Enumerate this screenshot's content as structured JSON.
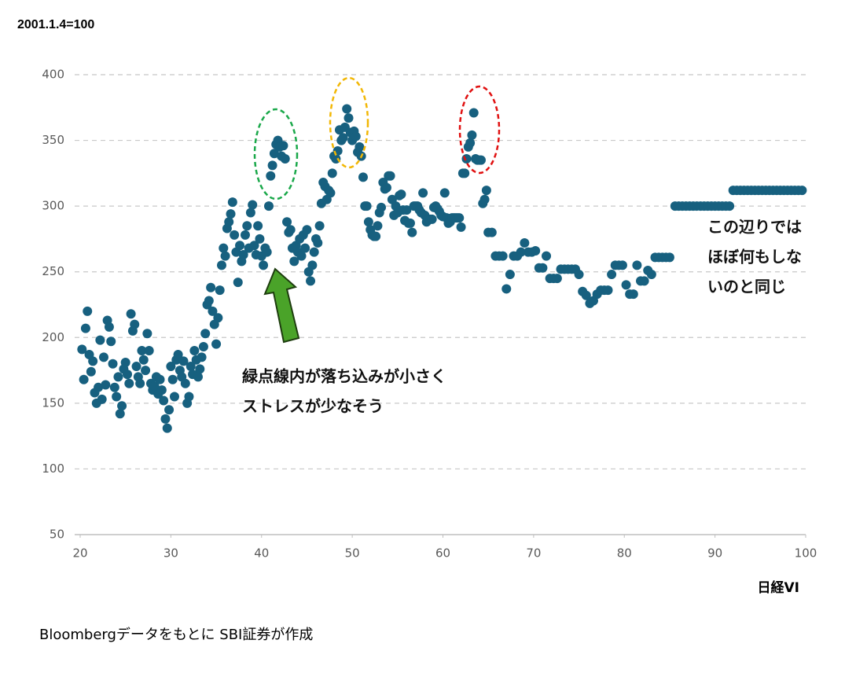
{
  "chart_data": {
    "type": "scatter",
    "ylabel": "2001.1.4=100",
    "xlabel": "日経VI",
    "source": "Bloombergデータをもとに SBI証券が作成",
    "annotations": [
      "緑点線内が落ち込みが小さく",
      "ストレスが少なそう",
      "この辺りでは",
      "ほぼ何もしな",
      "いのと同じ"
    ],
    "color": "#17607f",
    "xlim": [
      20,
      100
    ],
    "xticks": [
      20,
      30,
      40,
      50,
      60,
      70,
      80,
      90,
      100
    ],
    "ylim": [
      50,
      400
    ],
    "yticks": [
      50,
      100,
      150,
      200,
      250,
      300,
      350,
      400
    ],
    "grid": true,
    "x": [
      20.2,
      20.4,
      20.6,
      20.8,
      21.0,
      21.2,
      21.4,
      21.6,
      21.8,
      22.0,
      22.2,
      22.4,
      22.6,
      22.8,
      23.0,
      23.2,
      23.4,
      23.6,
      23.8,
      24.0,
      24.2,
      24.4,
      24.6,
      24.8,
      25.0,
      25.2,
      25.4,
      25.6,
      25.8,
      26.0,
      26.2,
      26.4,
      26.6,
      26.8,
      27.0,
      27.2,
      27.4,
      27.6,
      27.8,
      28.0,
      28.2,
      28.4,
      28.6,
      28.8,
      29.0,
      29.2,
      29.4,
      29.6,
      29.8,
      30.0,
      30.2,
      30.4,
      30.6,
      30.8,
      31.0,
      31.2,
      31.4,
      31.6,
      31.8,
      32.0,
      32.2,
      32.4,
      32.6,
      32.8,
      33.0,
      33.2,
      33.4,
      33.6,
      33.8,
      34.0,
      34.2,
      34.4,
      34.6,
      34.8,
      35.0,
      35.2,
      35.4,
      35.6,
      35.8,
      36.0,
      36.2,
      36.4,
      36.6,
      36.8,
      37.0,
      37.2,
      37.4,
      37.6,
      37.8,
      38.0,
      38.2,
      38.4,
      38.6,
      38.8,
      39.0,
      39.2,
      39.4,
      39.6,
      39.8,
      40.0,
      40.2,
      40.4,
      40.6,
      40.8,
      41.0,
      41.2,
      41.4,
      41.6,
      41.8,
      42.0,
      42.2,
      42.4,
      42.6,
      42.8,
      43.0,
      43.2,
      43.4,
      43.6,
      43.8,
      44.0,
      44.2,
      44.4,
      44.6,
      44.8,
      45.0,
      45.2,
      45.4,
      45.6,
      45.8,
      46.0,
      46.2,
      46.4,
      46.6,
      46.8,
      47.0,
      47.2,
      47.4,
      47.6,
      47.8,
      48.0,
      48.2,
      48.4,
      48.6,
      48.8,
      49.0,
      49.2,
      49.4,
      49.6,
      49.8,
      50.0,
      50.2,
      50.4,
      50.6,
      50.8,
      51.0,
      51.2,
      51.4,
      51.6,
      51.8,
      52.0,
      52.2,
      52.4,
      52.6,
      52.8,
      53.0,
      53.2,
      53.4,
      53.6,
      53.8,
      54.0,
      54.2,
      54.4,
      54.6,
      54.8,
      55.0,
      55.2,
      55.4,
      55.6,
      55.8,
      56.0,
      56.2,
      56.4,
      56.6,
      56.8,
      57.0,
      57.2,
      57.4,
      57.6,
      57.8,
      58.0,
      58.2,
      58.4,
      58.6,
      58.8,
      59.0,
      59.2,
      59.4,
      59.6,
      59.8,
      60.0,
      60.2,
      60.4,
      60.6,
      60.8,
      61.0,
      61.2,
      61.4,
      61.6,
      61.8,
      62.0,
      62.2,
      62.4,
      62.6,
      62.8,
      63.0,
      63.2,
      63.4,
      63.6,
      63.8,
      64.0,
      64.2,
      64.4,
      64.6,
      64.8,
      65.0,
      65.4,
      65.8,
      66.2,
      66.6,
      67.0,
      67.4,
      67.8,
      68.2,
      68.6,
      69.0,
      69.4,
      69.8,
      70.2,
      70.6,
      71.0,
      71.4,
      71.8,
      72.2,
      72.6,
      73.0,
      73.4,
      73.8,
      74.2,
      74.6,
      75.0,
      75.4,
      75.8,
      76.2,
      76.6,
      77.0,
      77.4,
      77.8,
      78.2,
      78.6,
      79.0,
      79.4,
      79.8,
      80.2,
      80.6,
      81.0,
      81.4,
      81.8,
      82.2,
      82.6,
      83.0,
      83.4,
      83.8,
      84.2,
      84.6,
      85.0,
      85.6,
      86.0,
      86.4,
      86.8,
      87.2,
      87.6,
      88.0,
      88.4,
      88.8,
      89.2,
      89.6,
      90.0,
      90.4,
      90.8,
      91.2,
      91.6,
      92.0,
      92.4,
      92.8,
      93.2,
      93.6,
      94.0,
      94.4,
      94.8,
      95.2,
      95.6,
      96.0,
      96.4,
      96.8,
      97.2,
      97.6,
      98.0,
      98.4,
      98.8,
      99.2,
      99.6
    ],
    "values": [
      191,
      168,
      207,
      220,
      187,
      174,
      182,
      158,
      150,
      162,
      198,
      153,
      185,
      164,
      213,
      208,
      197,
      180,
      162,
      155,
      170,
      142,
      148,
      176,
      181,
      172,
      165,
      218,
      205,
      210,
      178,
      170,
      165,
      190,
      183,
      175,
      203,
      190,
      165,
      160,
      163,
      170,
      157,
      168,
      160,
      152,
      138,
      131,
      145,
      178,
      168,
      155,
      183,
      187,
      175,
      170,
      182,
      165,
      150,
      155,
      178,
      172,
      190,
      183,
      170,
      176,
      185,
      193,
      203,
      225,
      228,
      238,
      220,
      210,
      195,
      215,
      236,
      255,
      268,
      262,
      283,
      288,
      294,
      303,
      278,
      265,
      242,
      270,
      258,
      263,
      278,
      285,
      268,
      295,
      301,
      270,
      263,
      285,
      275,
      262,
      255,
      268,
      265,
      300,
      323,
      331,
      340,
      347,
      350,
      345,
      338,
      346,
      336,
      288,
      280,
      282,
      268,
      258,
      270,
      265,
      275,
      262,
      278,
      268,
      282,
      250,
      243,
      255,
      265,
      275,
      272,
      285,
      302,
      318,
      315,
      305,
      312,
      310,
      325,
      338,
      336,
      342,
      358,
      350,
      352,
      360,
      374,
      367,
      356,
      350,
      357,
      353,
      341,
      345,
      338,
      322,
      300,
      300,
      288,
      282,
      278,
      277,
      277,
      285,
      295,
      299,
      318,
      313,
      314,
      323,
      323,
      305,
      293,
      300,
      295,
      308,
      309,
      297,
      289,
      297,
      287,
      287,
      280,
      300,
      300,
      300,
      297,
      295,
      310,
      293,
      288,
      290,
      290,
      290,
      299,
      300,
      298,
      296,
      293,
      292,
      310,
      291,
      287,
      288,
      291,
      291,
      291,
      291,
      291,
      284,
      325,
      325,
      336,
      345,
      348,
      354,
      371,
      336,
      335,
      335,
      335,
      302,
      305,
      312,
      280,
      280,
      262,
      262,
      262,
      237,
      248,
      262,
      262,
      265,
      272,
      265,
      265,
      266,
      253,
      253,
      262,
      245,
      245,
      245,
      252,
      252,
      252,
      252,
      252,
      248,
      235,
      232,
      226,
      228,
      233,
      236,
      236,
      236,
      248,
      255,
      255,
      255,
      240,
      233,
      233,
      255,
      243,
      243,
      251,
      248,
      261,
      261,
      261,
      261,
      261,
      300,
      300,
      300,
      300,
      300,
      300,
      300,
      300,
      300,
      300,
      300,
      300,
      300,
      300,
      300,
      300,
      312,
      312,
      312,
      312,
      312,
      312,
      312,
      312,
      312,
      312,
      312,
      312,
      312,
      312,
      312,
      312,
      312,
      312,
      312,
      312
    ]
  }
}
